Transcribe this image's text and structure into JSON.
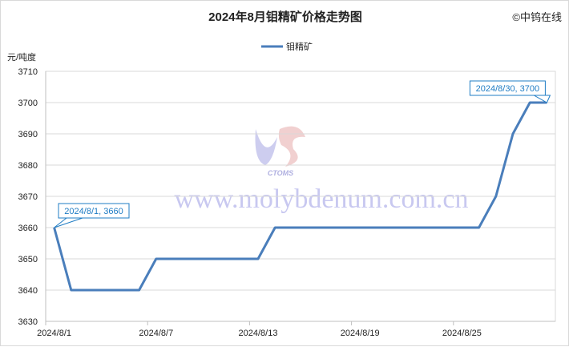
{
  "chart_data": {
    "type": "line",
    "title": "2024年8月钼精矿价格走势图",
    "copyright": "©中钨在线",
    "ylabel": "元/吨度",
    "ylim": [
      3630,
      3710
    ],
    "yticks": [
      3630,
      3640,
      3650,
      3660,
      3670,
      3680,
      3690,
      3700,
      3710
    ],
    "grid": true,
    "legend_position": "top",
    "xtick_labels": [
      "2024/8/1",
      "2024/8/7",
      "2024/8/13",
      "2024/8/19",
      "2024/8/25"
    ],
    "categories": [
      "2024/8/1",
      "2024/8/2",
      "2024/8/3",
      "2024/8/4",
      "2024/8/5",
      "2024/8/6",
      "2024/8/7",
      "2024/8/8",
      "2024/8/9",
      "2024/8/10",
      "2024/8/11",
      "2024/8/12",
      "2024/8/13",
      "2024/8/14",
      "2024/8/15",
      "2024/8/16",
      "2024/8/17",
      "2024/8/18",
      "2024/8/19",
      "2024/8/20",
      "2024/8/21",
      "2024/8/22",
      "2024/8/23",
      "2024/8/24",
      "2024/8/25",
      "2024/8/26",
      "2024/8/27",
      "2024/8/28",
      "2024/8/29",
      "2024/8/30"
    ],
    "series": [
      {
        "name": "钼精矿",
        "color": "#4a7ebb",
        "values": [
          3660,
          3640,
          3640,
          3640,
          3640,
          3640,
          3650,
          3650,
          3650,
          3650,
          3650,
          3650,
          3650,
          3660,
          3660,
          3660,
          3660,
          3660,
          3660,
          3660,
          3660,
          3660,
          3660,
          3660,
          3660,
          3660,
          3670,
          3690,
          3700,
          3700
        ]
      }
    ],
    "annotations": [
      {
        "text": "2024/8/1, 3660",
        "index": 0
      },
      {
        "text": "2024/8/30, 3700",
        "index": 29
      }
    ],
    "annotation_color": "#1f7cc4",
    "watermark": {
      "logo": "CTOMS",
      "text": "www.molybdenum.com.cn",
      "color": "#c8c8f0"
    }
  }
}
